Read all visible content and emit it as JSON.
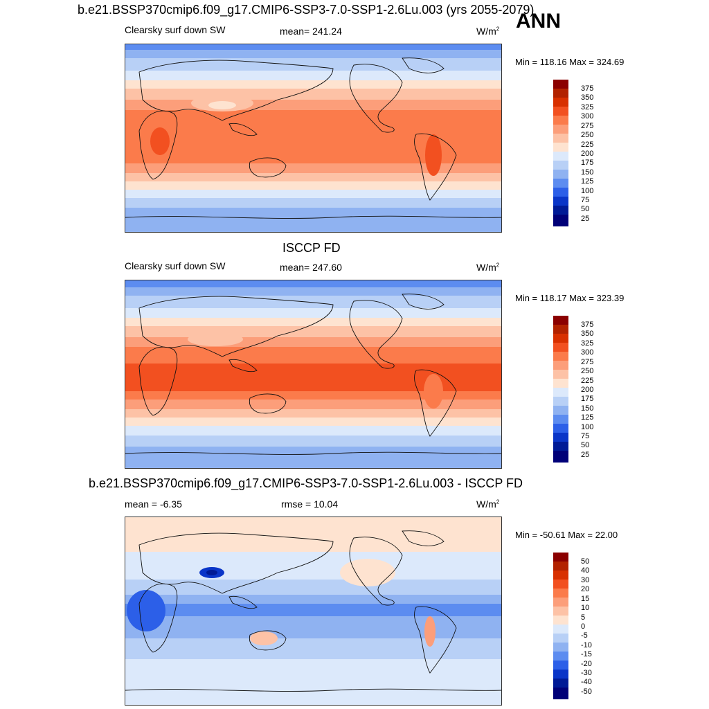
{
  "header": {
    "title_top": "b.e21.BSSP370cmip6.f09_g17.CMIP6-SSP3-7.0-SSP1-2.6Lu.003 (yrs 2055-2079)",
    "season": "ANN"
  },
  "panels": [
    {
      "left_label": "Clearsky surf down SW",
      "center_label": "mean= 241.24",
      "units_main": "W/m",
      "units_sup": "2",
      "minmax": "Min = 118.16 Max = 324.69",
      "colorbar_labels": [
        "375",
        "350",
        "325",
        "300",
        "275",
        "250",
        "225",
        "200",
        "175",
        "150",
        "125",
        "100",
        "75",
        "50",
        "25"
      ]
    },
    {
      "title": "ISCCP FD",
      "left_label": "Clearsky surf down SW",
      "center_label": "mean= 247.60",
      "units_main": "W/m",
      "units_sup": "2",
      "minmax": "Min = 118.17 Max = 323.39",
      "colorbar_labels": [
        "375",
        "350",
        "325",
        "300",
        "275",
        "250",
        "225",
        "200",
        "175",
        "150",
        "125",
        "100",
        "75",
        "50",
        "25"
      ]
    },
    {
      "title": "b.e21.BSSP370cmip6.f09_g17.CMIP6-SSP3-7.0-SSP1-2.6Lu.003 - ISCCP FD",
      "left_label": "mean =  -6.35",
      "center_label": "rmse =  10.04",
      "units_main": "W/m",
      "units_sup": "2",
      "minmax": "Min = -50.61 Max =  22.00",
      "colorbar_labels": [
        "50",
        "40",
        "30",
        "20",
        "15",
        "10",
        "5",
        "0",
        "-5",
        "-10",
        "-15",
        "-20",
        "-30",
        "-40",
        "-50"
      ]
    }
  ],
  "colors": {
    "abs_scale": [
      "#8b0000",
      "#b22200",
      "#d83000",
      "#f25020",
      "#fb7b4b",
      "#fc9e7a",
      "#fdc2a6",
      "#fee3d0",
      "#dce9fb",
      "#b8d0f6",
      "#8fb2f1",
      "#5c8cf0",
      "#2c5fe8",
      "#0a35c8",
      "#001a96",
      "#000078"
    ],
    "diff_scale": [
      "#8b0000",
      "#b22200",
      "#d83000",
      "#f25020",
      "#fb7b4b",
      "#fc9e7a",
      "#fdc2a6",
      "#fee3d0",
      "#dce9fb",
      "#b8d0f6",
      "#8fb2f1",
      "#5c8cf0",
      "#2c5fe8",
      "#0a35c8",
      "#001a96",
      "#000078"
    ]
  }
}
